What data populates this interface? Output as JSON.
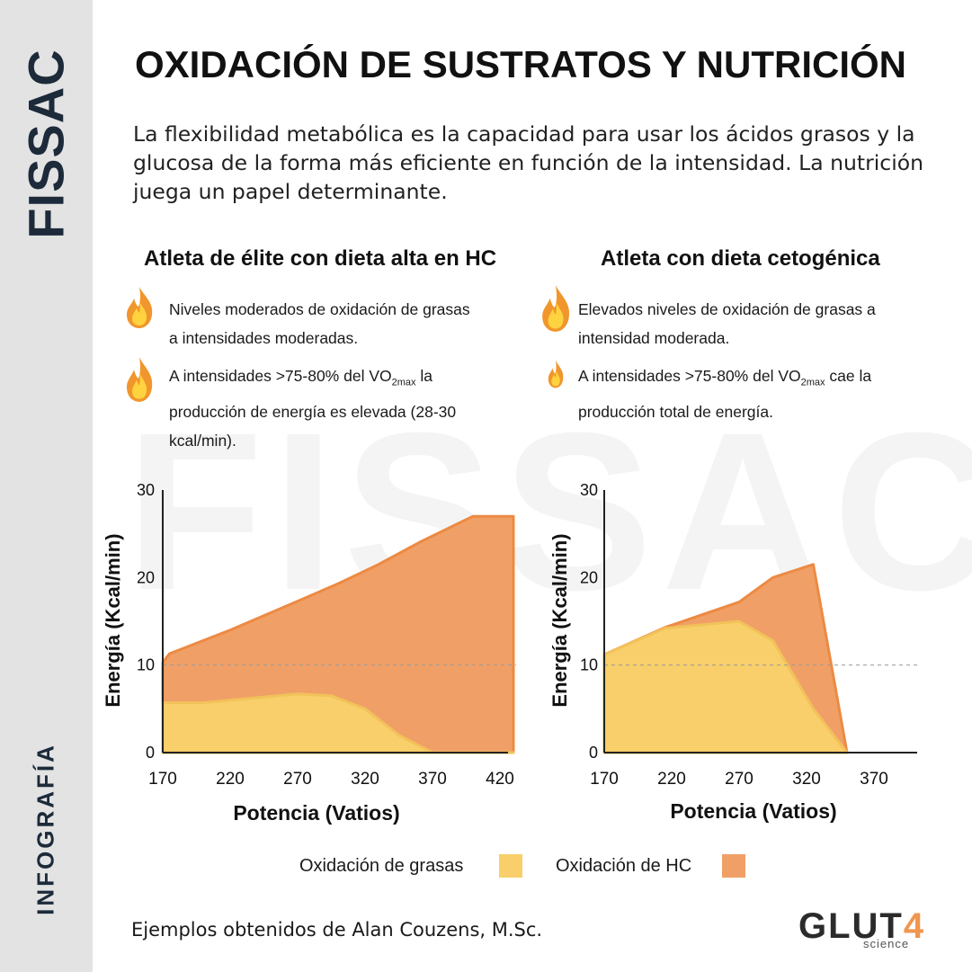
{
  "side": {
    "brand": "FISSAC",
    "label": "INFOGRAFÍA"
  },
  "watermark": "FISSAC",
  "title": "OXIDACIÓN DE SUSTRATOS Y NUTRICIÓN",
  "intro": "La flexibilidad metabólica es la capacidad para usar los ácidos grasos y la glucosa de la forma más eficiente en función de la intensidad. La nutrición juega un papel determinante.",
  "left": {
    "heading": "Atleta de élite con dieta alta en HC",
    "bullet1": "Niveles moderados de oxidación de grasas  a intensidades moderadas.",
    "bullet2_pre": "A intensidades >75-80% del VO",
    "bullet2_sub": "2max",
    "bullet2_post": " la producción de energía es elevada  (28-30 kcal/min)."
  },
  "right": {
    "heading": "Atleta con dieta cetogénica",
    "bullet1": "Elevados niveles de oxidación de grasas a intensidad moderada.",
    "bullet2_pre": "A intensidades >75-80% del VO",
    "bullet2_sub": "2max",
    "bullet2_post": " cae la producción total de energía."
  },
  "legend": {
    "fat": "Oxidación de grasas",
    "hc": "Oxidación de HC"
  },
  "credit": {
    "prefix": "Ejemplos obtenidos de ",
    "author": "Alan Couzens, M.Sc."
  },
  "logo": {
    "main": "GLUT",
    "digit": "4",
    "sub": "science"
  },
  "colors": {
    "fat": "#f8cf6a",
    "fat_line": "#f2c25a",
    "hc": "#f0a066",
    "hc_line": "#ec8a43",
    "sidebar": "#e3e3e3",
    "brand": "#1c2a3a"
  },
  "icons": [
    "flame-icon"
  ],
  "chart_data": [
    {
      "type": "area",
      "xlabel": "Potencia (Vatios)",
      "ylabel": "Energía (Kcal/min)",
      "xticks": [
        170,
        220,
        270,
        320,
        370,
        420
      ],
      "yticks": [
        0,
        10,
        20,
        30
      ],
      "xlim": [
        170,
        430
      ],
      "ylim": [
        0,
        30
      ],
      "reference_line_y": 10,
      "series": [
        {
          "name": "Oxidación de HC",
          "x": [
            170,
            175,
            220,
            270,
            300,
            330,
            360,
            400,
            420,
            430
          ],
          "y": [
            10.3,
            11.3,
            14,
            17.3,
            19.3,
            21.5,
            24,
            27,
            27,
            27
          ]
        },
        {
          "name": "Oxidación de grasas",
          "x": [
            170,
            200,
            270,
            295,
            320,
            345,
            370,
            430
          ],
          "y": [
            5.7,
            5.7,
            6.7,
            6.5,
            5,
            2,
            0,
            0
          ]
        }
      ]
    },
    {
      "type": "area",
      "xlabel": "Potencia (Vatios)",
      "ylabel": "Energía (Kcal/min)",
      "xticks": [
        170,
        220,
        270,
        320,
        370
      ],
      "yticks": [
        0,
        10,
        20,
        30
      ],
      "xlim": [
        170,
        400
      ],
      "ylim": [
        0,
        30
      ],
      "reference_line_y": 10,
      "series": [
        {
          "name": "Oxidación de HC",
          "x": [
            170,
            215,
            270,
            295,
            325,
            350
          ],
          "y": [
            11.2,
            14.3,
            17.2,
            20,
            21.5,
            0
          ]
        },
        {
          "name": "Oxidación de grasas",
          "x": [
            170,
            215,
            270,
            295,
            325,
            350
          ],
          "y": [
            11.2,
            14.2,
            15,
            12.8,
            5,
            0
          ]
        }
      ]
    }
  ]
}
